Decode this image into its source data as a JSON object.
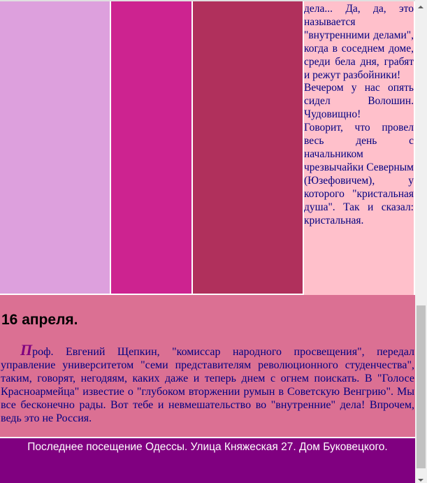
{
  "colors": {
    "plum": "#dda0dd",
    "magenta": "#cd2390",
    "maroon": "#b0305c",
    "pink": "#ffc0cb",
    "section": "#db7093",
    "footer": "#800080",
    "text": "#000080"
  },
  "column_text": [
    "дела... Да, да, это называется \"внутренними делами\", когда в соседнем доме, среди бела дня, грабят и режут разбойники!",
    "Вечером у нас опять сидел Волошин. Чудовищно!",
    "Говорит, что провел весь день с начальником чрезвычайки Северным (Юзефовичем), у которого \"кристальная душа\". Так и сказал: кристальная."
  ],
  "entry": {
    "date": "16 апреля.",
    "drop_cap": "П",
    "body": "роф. Евгений Щепкин, \"комиссар народного просвещения\", передал управление университетом \"семи представителям революционного студенчества\", таким, говорят, негодяям, каких даже и теперь днем с огнем поискать. В \"Голосе Красноармейца\" известие о \"глубоком вторжении румын в Советскую Венгрию\". Мы все бесконечно рады. Вот тебе и невмешательство во \"внутренние\" дела! Впрочем, ведь это не Россия."
  },
  "footer": {
    "text": "Последнее посещение Одессы. Улица Княжеская 27. Дом Буковецкого."
  }
}
